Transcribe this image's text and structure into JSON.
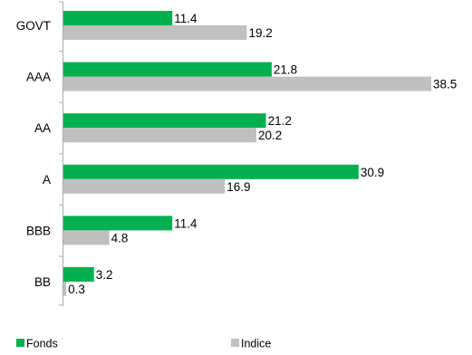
{
  "chart_data": {
    "type": "bar",
    "orientation": "horizontal",
    "title": "",
    "xlabel": "",
    "ylabel": "",
    "categories": [
      "GOVT",
      "AAA",
      "AA",
      "A",
      "BBB",
      "BB"
    ],
    "series": [
      {
        "name": "Fonds",
        "color": "#00b050",
        "values": [
          11.4,
          21.8,
          21.2,
          30.9,
          11.4,
          3.2
        ]
      },
      {
        "name": "Indice",
        "color": "#c0c0c0",
        "values": [
          19.2,
          38.5,
          20.2,
          16.9,
          4.8,
          0.3
        ]
      }
    ],
    "xlim": [
      0,
      38.5
    ],
    "grid": false,
    "axis_line_color": "#aaaaaa",
    "legend_position": "bottom"
  }
}
